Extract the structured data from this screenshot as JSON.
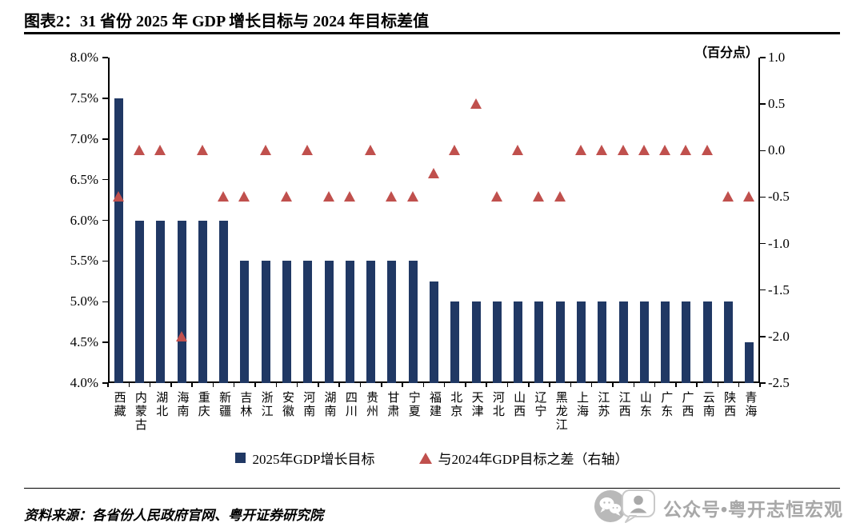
{
  "title": "图表2：31 省份 2025 年 GDP 增长目标与 2024 年目标差值",
  "colors": {
    "bar": "#203864",
    "marker": "#C0504D"
  },
  "footer": {
    "source": "资料来源：各省份人民政府官网、粤开证券研究院",
    "watermark": "公众号•粤开志恒宏观"
  },
  "chart_data": {
    "type": "bar",
    "title": "图表2：31 省份 2025 年 GDP 增长目标与 2024 年目标差值",
    "categories": [
      "西藏",
      "内蒙古",
      "湖北",
      "海南",
      "重庆",
      "新疆",
      "吉林",
      "浙江",
      "安徽",
      "河南",
      "湖南",
      "四川",
      "贵州",
      "甘肃",
      "宁夏",
      "福建",
      "北京",
      "天津",
      "河北",
      "山西",
      "辽宁",
      "黑龙江",
      "上海",
      "江苏",
      "江西",
      "山东",
      "广东",
      "广西",
      "云南",
      "陕西",
      "青海"
    ],
    "series": [
      {
        "name": "2025年GDP增长目标",
        "type": "bar",
        "axis": "left",
        "color": "#203864",
        "values": [
          7.5,
          6.0,
          6.0,
          6.0,
          6.0,
          6.0,
          5.5,
          5.5,
          5.5,
          5.5,
          5.5,
          5.5,
          5.5,
          5.5,
          5.5,
          5.25,
          5.0,
          5.0,
          5.0,
          5.0,
          5.0,
          5.0,
          5.0,
          5.0,
          5.0,
          5.0,
          5.0,
          5.0,
          5.0,
          5.0,
          4.5
        ]
      },
      {
        "name": "与2024年GDP目标之差（右轴）",
        "type": "scatter-triangle",
        "axis": "right",
        "color": "#C0504D",
        "values": [
          -0.5,
          0.0,
          0.0,
          -2.0,
          0.0,
          -0.5,
          -0.5,
          0.0,
          -0.5,
          0.0,
          -0.5,
          -0.5,
          0.0,
          -0.5,
          -0.5,
          -0.25,
          0.0,
          0.5,
          -0.5,
          0.0,
          -0.5,
          -0.5,
          0.0,
          0.0,
          0.0,
          0.0,
          0.0,
          0.0,
          0.0,
          -0.5,
          -0.5
        ]
      }
    ],
    "left_axis": {
      "min": 4.0,
      "max": 8.0,
      "tick_values": [
        8.0,
        7.5,
        7.0,
        6.5,
        6.0,
        5.5,
        5.0,
        4.5,
        4.0
      ],
      "tick_labels": [
        "8.0%",
        "7.5%",
        "7.0%",
        "6.5%",
        "6.0%",
        "5.5%",
        "5.0%",
        "4.5%",
        "4.0%"
      ]
    },
    "right_axis": {
      "min": -2.5,
      "max": 1.0,
      "title": "（百分点）",
      "tick_values": [
        1.0,
        0.5,
        0.0,
        -0.5,
        -1.0,
        -1.5,
        -2.0,
        -2.5
      ],
      "tick_labels": [
        "1.0",
        "0.5",
        "0.0",
        "-0.5",
        "-1.0",
        "-1.5",
        "-2.0",
        "-2.5"
      ]
    },
    "grid": false,
    "legend_position": "bottom"
  }
}
